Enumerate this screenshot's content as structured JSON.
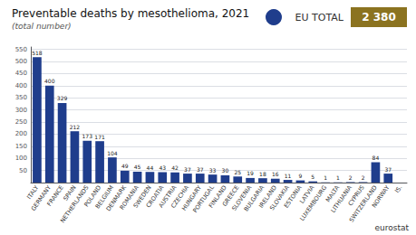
{
  "chart_data": {
    "type": "bar",
    "title": "Preventable deaths by mesothelioma, 2021",
    "subtitle": "(total number)",
    "annotations": [
      "EU TOTAL",
      "2 380",
      "eurostat"
    ],
    "categories": [
      "ITALY",
      "GERMANY",
      "FRANCE",
      "SPAIN",
      "NETHERLANDS",
      "POLAND",
      "BELGIUM",
      "DENMARK",
      "ROMANIA",
      "SWEDEN",
      "CROATIA",
      "AUSTRIA",
      "CZECHIA",
      "HUNGARY",
      "PORTUGAL",
      "FINLAND",
      "GREECE",
      "SLOVENIA",
      "BULGARIA",
      "IRELAND",
      "SLOVAKIA",
      "ESTONIA",
      "LATVIA",
      "LUXEMBOURG",
      "MALTA",
      "LITHUANIA",
      "CYPRUS",
      "SWITZERLAND",
      "NORWAY",
      "IS."
    ],
    "values": [
      518,
      400,
      329,
      212,
      173,
      171,
      104,
      49,
      45,
      44,
      43,
      42,
      37,
      37,
      33,
      30,
      25,
      19,
      18,
      16,
      11,
      9,
      5,
      1,
      1,
      2,
      2,
      84,
      37,
      0
    ],
    "value_labels": [
      "518",
      "400",
      "329",
      "212",
      "173",
      "171",
      "104",
      "49",
      "45",
      "44",
      "43",
      "42",
      "37",
      "37",
      "33",
      "30",
      "25",
      "19",
      "18",
      "16",
      "11",
      "9",
      "5",
      "1",
      "1",
      "2",
      "2",
      "84",
      "37",
      null
    ],
    "data_labels": true,
    "color": "#1f3d8c",
    "ylim": [
      0,
      560
    ],
    "yticks": [
      50,
      100,
      150,
      200,
      250,
      300,
      350,
      400,
      450,
      500,
      550
    ],
    "grid": true
  }
}
